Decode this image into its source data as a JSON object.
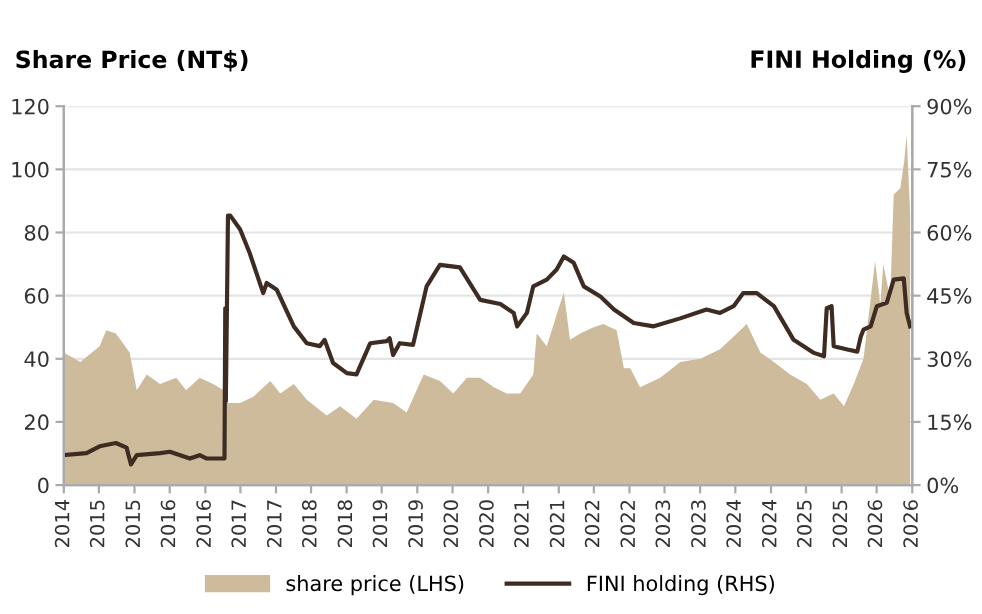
{
  "chart_data": {
    "type": "area",
    "ylabel": "Share Price (NT$)",
    "y2label": "FINI Holding (%)",
    "xlim": [
      "2014-09-01",
      "2026-09-01"
    ],
    "xticks": [
      {
        "value": "2014-09-01",
        "label": "2014"
      },
      {
        "value": "2015-03-01",
        "label": "2015"
      },
      {
        "value": "2015-09-01",
        "label": "2015"
      },
      {
        "value": "2016-03-01",
        "label": "2016"
      },
      {
        "value": "2016-09-01",
        "label": "2016"
      },
      {
        "value": "2017-03-01",
        "label": "2017"
      },
      {
        "value": "2017-09-01",
        "label": "2017"
      },
      {
        "value": "2018-03-01",
        "label": "2018"
      },
      {
        "value": "2018-09-01",
        "label": "2018"
      },
      {
        "value": "2019-03-01",
        "label": "2019"
      },
      {
        "value": "2019-09-01",
        "label": "2019"
      },
      {
        "value": "2020-03-01",
        "label": "2020"
      },
      {
        "value": "2020-09-01",
        "label": "2020"
      },
      {
        "value": "2021-03-01",
        "label": "2021"
      },
      {
        "value": "2021-09-01",
        "label": "2021"
      },
      {
        "value": "2022-03-01",
        "label": "2022"
      },
      {
        "value": "2022-09-01",
        "label": "2022"
      },
      {
        "value": "2023-03-01",
        "label": "2023"
      },
      {
        "value": "2023-09-01",
        "label": "2023"
      },
      {
        "value": "2024-03-01",
        "label": "2024"
      },
      {
        "value": "2024-09-01",
        "label": "2024"
      },
      {
        "value": "2025-03-01",
        "label": "2025"
      },
      {
        "value": "2025-09-01",
        "label": "2025"
      },
      {
        "value": "2026-03-01",
        "label": "2026"
      },
      {
        "value": "2026-09-01",
        "label": "2026"
      }
    ],
    "ylim": [
      0,
      120
    ],
    "yticks": [
      0,
      20,
      40,
      60,
      80,
      100,
      120
    ],
    "y2lim": [
      0,
      90
    ],
    "y2ticks": [
      {
        "value": 0,
        "label": "0%"
      },
      {
        "value": 15,
        "label": "15%"
      },
      {
        "value": 30,
        "label": "30%"
      },
      {
        "value": 45,
        "label": "45%"
      },
      {
        "value": 60,
        "label": "60%"
      },
      {
        "value": 75,
        "label": "75%"
      },
      {
        "value": 90,
        "label": "90%"
      }
    ],
    "grid": "y",
    "legend": "bottom",
    "series": [
      {
        "name": "share price (LHS)",
        "color": "#cdbb9b",
        "x": [
          "2014-09-01",
          "2014-11-25",
          "2015-03-05",
          "2015-04-08",
          "2015-05-28",
          "2015-08-07",
          "2015-09-13",
          "2015-11-03",
          "2016-01-11",
          "2016-04-04",
          "2016-05-25",
          "2016-08-03",
          "2016-10-11",
          "2016-12-05",
          "2016-12-13",
          "2016-12-27",
          "2017-02-28",
          "2017-05-07",
          "2017-08-03",
          "2017-09-23",
          "2017-12-02",
          "2018-02-07",
          "2018-05-21",
          "2018-07-29",
          "2018-10-22",
          "2019-01-19",
          "2019-04-29",
          "2019-07-08",
          "2019-10-04",
          "2019-12-27",
          "2020-03-05",
          "2020-05-14",
          "2020-07-22",
          "2020-10-01",
          "2020-12-05",
          "2021-02-14",
          "2021-04-22",
          "2021-05-10",
          "2021-07-01",
          "2021-08-21",
          "2021-09-27",
          "2021-10-29",
          "2021-12-20",
          "2022-02-28",
          "2022-04-19",
          "2022-06-27",
          "2022-08-03",
          "2022-09-05",
          "2022-10-26",
          "2023-02-07",
          "2023-05-21",
          "2023-09-02",
          "2023-12-13",
          "2024-03-09",
          "2024-04-29",
          "2024-07-08",
          "2024-09-16",
          "2024-12-09",
          "2025-03-05",
          "2025-05-14",
          "2025-07-22",
          "2025-09-13",
          "2025-11-03",
          "2025-12-23",
          "2026-01-29",
          "2026-02-21",
          "2026-03-20",
          "2026-04-04",
          "2026-05-10",
          "2026-05-28",
          "2026-07-01",
          "2026-07-22",
          "2026-08-03",
          "2026-08-21"
        ],
        "values": [
          42,
          39,
          44,
          49,
          48,
          42,
          30,
          35,
          32,
          34,
          30,
          34,
          32,
          30,
          57,
          26,
          26,
          28,
          33,
          29,
          32,
          27,
          22,
          25,
          21,
          27,
          26,
          23,
          35,
          33,
          29,
          34,
          34,
          31,
          29,
          29,
          35,
          48,
          44,
          54,
          61,
          46,
          48,
          50,
          51,
          49,
          37,
          37,
          31,
          34,
          39,
          40,
          43,
          48,
          51,
          42,
          39,
          35,
          32,
          27,
          29,
          25,
          32,
          40,
          59,
          71,
          57,
          70,
          59,
          92,
          94,
          103,
          111,
          86
        ]
      },
      {
        "name": "FINI holding (RHS)",
        "type": "line",
        "axis": "y2",
        "color": "#3e2c22",
        "x": [
          "2014-09-01",
          "2014-12-27",
          "2015-03-05",
          "2015-05-28",
          "2015-07-22",
          "2015-08-14",
          "2015-09-13",
          "2016-01-11",
          "2016-03-02",
          "2016-06-13",
          "2016-08-03",
          "2016-09-09",
          "2016-12-09",
          "2016-12-13",
          "2016-12-16",
          "2016-12-27",
          "2017-01-08",
          "2017-02-28",
          "2017-04-19",
          "2017-06-27",
          "2017-07-15",
          "2017-09-05",
          "2017-12-02",
          "2018-02-07",
          "2018-04-15",
          "2018-05-10",
          "2018-06-23",
          "2018-09-02",
          "2018-10-22",
          "2019-01-01",
          "2019-03-27",
          "2019-04-11",
          "2019-04-29",
          "2019-06-02",
          "2019-08-10",
          "2019-10-19",
          "2019-12-27",
          "2020-04-08",
          "2020-07-22",
          "2020-11-03",
          "2021-01-11",
          "2021-01-29",
          "2021-03-20",
          "2021-04-22",
          "2021-07-01",
          "2021-08-21",
          "2021-09-27",
          "2021-11-17",
          "2022-01-08",
          "2022-04-04",
          "2022-06-13",
          "2022-09-23",
          "2023-01-04",
          "2023-05-21",
          "2023-10-04",
          "2023-12-13",
          "2024-02-21",
          "2024-04-11",
          "2024-06-20",
          "2024-09-16",
          "2024-12-27",
          "2025-04-11",
          "2025-06-02",
          "2025-06-16",
          "2025-07-11",
          "2025-07-22",
          "2025-10-01",
          "2025-11-21",
          "2025-12-09",
          "2025-12-23",
          "2026-01-29",
          "2026-03-02",
          "2026-04-22",
          "2026-05-28",
          "2026-07-19",
          "2026-08-03",
          "2026-08-21"
        ],
        "values": [
          7.1,
          7.6,
          9.2,
          10,
          8.9,
          4.9,
          7.1,
          7.6,
          7.9,
          6.3,
          7.1,
          6.3,
          6.3,
          42,
          20,
          64,
          64,
          60.7,
          55,
          45.6,
          48,
          46.4,
          37.7,
          33.7,
          33,
          34.5,
          29,
          26.6,
          26.3,
          33.7,
          34.2,
          34.9,
          30.9,
          33.7,
          33.3,
          47.2,
          52.3,
          51.7,
          44,
          43,
          40.9,
          37.7,
          40.9,
          47.2,
          48.8,
          51.2,
          54.3,
          52.8,
          47.2,
          44.8,
          41.7,
          38.5,
          37.7,
          39.6,
          41.7,
          40.9,
          42.5,
          45.6,
          45.6,
          42.5,
          34.5,
          31.4,
          30.6,
          42,
          42.5,
          33,
          32.2,
          31.7,
          35.3,
          36.9,
          37.7,
          42.5,
          43.3,
          48.8,
          49.1,
          40.9,
          37.7
        ]
      }
    ]
  }
}
